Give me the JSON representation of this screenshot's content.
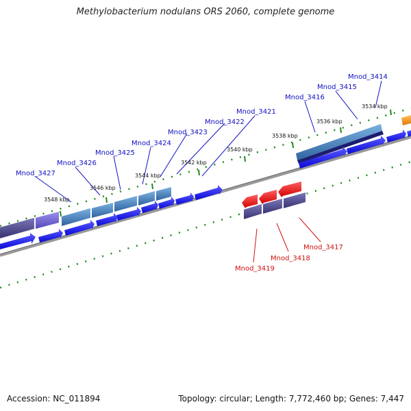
{
  "title": "Methylobacterium nodulans ORS 2060, complete genome",
  "footer": {
    "accession": "Accession: NC_011894",
    "summary": "Topology: circular; Length: 7,772,460 bp; Genes: 7,447"
  },
  "colors": {
    "backbone": "#888888",
    "ruler_tick": "#1e8a1e",
    "forward_label": "#1010c0",
    "reverse_label": "#d01010",
    "cds_blue": "#1a1af0",
    "cds_steel": "#3f79b8",
    "cds_navy": "#1c1c70",
    "cds_slate": "#4a4688",
    "cds_violet": "#6a60cc",
    "cds_red": "#f01010",
    "cds_orange": "#f09010"
  },
  "ruler_labels": [
    {
      "id": "kbp-3534",
      "text": "3534 kbp"
    },
    {
      "id": "kbp-3536",
      "text": "3536 kbp"
    },
    {
      "id": "kbp-3538",
      "text": "3538 kbp"
    },
    {
      "id": "kbp-3540",
      "text": "3540 kbp"
    },
    {
      "id": "kbp-3542",
      "text": "3542 kbp"
    },
    {
      "id": "kbp-3544",
      "text": "3544 kbp"
    },
    {
      "id": "kbp-3546",
      "text": "3546 kbp"
    },
    {
      "id": "kbp-3548",
      "text": "3548 kbp"
    }
  ],
  "forward_gene_labels": [
    {
      "id": "mnod-3414",
      "text": "Mnod_3414"
    },
    {
      "id": "mnod-3415",
      "text": "Mnod_3415"
    },
    {
      "id": "mnod-3416",
      "text": "Mnod_3416"
    },
    {
      "id": "mnod-3421",
      "text": "Mnod_3421"
    },
    {
      "id": "mnod-3422",
      "text": "Mnod_3422"
    },
    {
      "id": "mnod-3423",
      "text": "Mnod_3423"
    },
    {
      "id": "mnod-3424",
      "text": "Mnod_3424"
    },
    {
      "id": "mnod-3425",
      "text": "Mnod_3425"
    },
    {
      "id": "mnod-3426",
      "text": "Mnod_3426"
    },
    {
      "id": "mnod-3427",
      "text": "Mnod_3427"
    }
  ],
  "reverse_gene_labels": [
    {
      "id": "mnod-3417",
      "text": "Mnod_3417"
    },
    {
      "id": "mnod-3418",
      "text": "Mnod_3418"
    },
    {
      "id": "mnod-3419",
      "text": "Mnod_3419"
    }
  ]
}
